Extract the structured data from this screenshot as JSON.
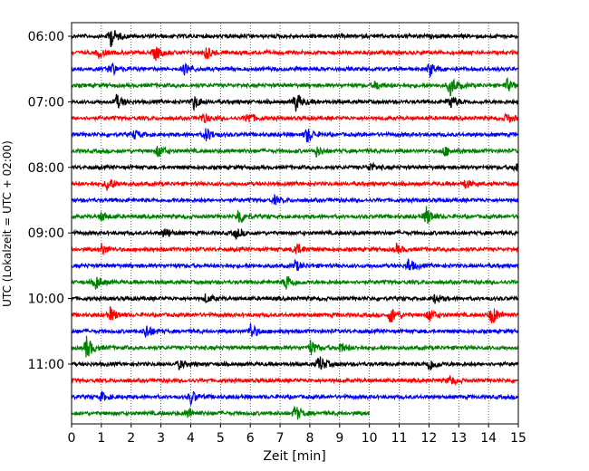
{
  "chart_data": {
    "type": "line",
    "title": "",
    "xlabel": "Zeit  [min]",
    "ylabel": "UTC (Lokalzeit = UTC + 02:00)",
    "xlim": [
      0,
      15
    ],
    "x_ticks": [
      "0",
      "1",
      "2",
      "3",
      "4",
      "5",
      "6",
      "7",
      "8",
      "9",
      "10",
      "11",
      "12",
      "13",
      "14",
      "15"
    ],
    "y_ticks": [
      "06:00",
      "07:00",
      "08:00",
      "09:00",
      "10:00",
      "11:00"
    ],
    "grid": "vertical dotted at each minute",
    "row_minutes": 15,
    "colors_cycle": [
      "#000000",
      "#ff0000",
      "#0000ff",
      "#008000"
    ],
    "rows": [
      {
        "start": "06:00",
        "color": "#000000",
        "end_min": 15,
        "events": [
          [
            1.3,
            12
          ]
        ]
      },
      {
        "start": "06:15",
        "color": "#ff0000",
        "end_min": 15,
        "events": [
          [
            2.8,
            9
          ],
          [
            4.5,
            8
          ],
          [
            0.9,
            6
          ]
        ]
      },
      {
        "start": "06:30",
        "color": "#0000ff",
        "end_min": 15,
        "events": [
          [
            12.0,
            8
          ],
          [
            1.3,
            8
          ],
          [
            3.8,
            7
          ]
        ]
      },
      {
        "start": "06:45",
        "color": "#008000",
        "end_min": 15,
        "events": [
          [
            12.7,
            12
          ],
          [
            14.6,
            7
          ],
          [
            10.2,
            5
          ]
        ]
      },
      {
        "start": "07:00",
        "color": "#000000",
        "end_min": 15,
        "events": [
          [
            7.5,
            12
          ],
          [
            1.5,
            8
          ],
          [
            4.1,
            8
          ],
          [
            12.7,
            8
          ]
        ]
      },
      {
        "start": "07:15",
        "color": "#ff0000",
        "end_min": 15,
        "events": [
          [
            5.9,
            7
          ],
          [
            4.4,
            6
          ],
          [
            14.6,
            6
          ]
        ]
      },
      {
        "start": "07:30",
        "color": "#0000ff",
        "end_min": 15,
        "events": [
          [
            4.5,
            8
          ],
          [
            7.9,
            9
          ],
          [
            2.1,
            5
          ]
        ]
      },
      {
        "start": "07:45",
        "color": "#008000",
        "end_min": 15,
        "events": [
          [
            2.9,
            7
          ],
          [
            8.2,
            6
          ],
          [
            12.5,
            6
          ]
        ]
      },
      {
        "start": "08:00",
        "color": "#000000",
        "end_min": 15,
        "events": [
          [
            14.9,
            7
          ],
          [
            10.0,
            5
          ]
        ]
      },
      {
        "start": "08:15",
        "color": "#ff0000",
        "end_min": 15,
        "events": [
          [
            1.2,
            9
          ],
          [
            13.2,
            5
          ]
        ]
      },
      {
        "start": "08:30",
        "color": "#0000ff",
        "end_min": 15,
        "events": [
          [
            6.8,
            4
          ]
        ]
      },
      {
        "start": "08:45",
        "color": "#008000",
        "end_min": 15,
        "events": [
          [
            5.6,
            10
          ],
          [
            11.9,
            11
          ],
          [
            1.0,
            5
          ]
        ]
      },
      {
        "start": "09:00",
        "color": "#000000",
        "end_min": 15,
        "events": [
          [
            5.5,
            6
          ],
          [
            3.1,
            6
          ]
        ]
      },
      {
        "start": "09:15",
        "color": "#ff0000",
        "end_min": 15,
        "events": [
          [
            7.5,
            8
          ],
          [
            1.0,
            6
          ],
          [
            10.9,
            5
          ]
        ]
      },
      {
        "start": "09:30",
        "color": "#0000ff",
        "end_min": 15,
        "events": [
          [
            11.3,
            8
          ],
          [
            7.5,
            6
          ]
        ]
      },
      {
        "start": "09:45",
        "color": "#008000",
        "end_min": 15,
        "events": [
          [
            7.2,
            10
          ],
          [
            0.8,
            8
          ]
        ]
      },
      {
        "start": "10:00",
        "color": "#000000",
        "end_min": 15,
        "events": [
          [
            4.5,
            5
          ],
          [
            12.2,
            5
          ]
        ]
      },
      {
        "start": "10:15",
        "color": "#ff0000",
        "end_min": 15,
        "events": [
          [
            14.1,
            12
          ],
          [
            10.7,
            10
          ],
          [
            1.3,
            8
          ],
          [
            12.0,
            7
          ]
        ]
      },
      {
        "start": "10:30",
        "color": "#0000ff",
        "end_min": 15,
        "events": [
          [
            6.0,
            9
          ],
          [
            2.5,
            8
          ]
        ]
      },
      {
        "start": "10:45",
        "color": "#008000",
        "end_min": 15,
        "events": [
          [
            0.5,
            13
          ],
          [
            8.0,
            9
          ],
          [
            9.0,
            6
          ]
        ]
      },
      {
        "start": "11:00",
        "color": "#000000",
        "end_min": 15,
        "events": [
          [
            8.3,
            10
          ],
          [
            12.0,
            8
          ],
          [
            3.6,
            5
          ]
        ]
      },
      {
        "start": "11:15",
        "color": "#ff0000",
        "end_min": 15,
        "events": [
          [
            12.7,
            5
          ]
        ]
      },
      {
        "start": "11:30",
        "color": "#0000ff",
        "end_min": 15,
        "events": [
          [
            4.0,
            8
          ],
          [
            1.0,
            5
          ]
        ]
      },
      {
        "start": "11:45",
        "color": "#008000",
        "end_min": 10,
        "events": [
          [
            7.5,
            9
          ],
          [
            3.9,
            6
          ]
        ]
      }
    ]
  }
}
